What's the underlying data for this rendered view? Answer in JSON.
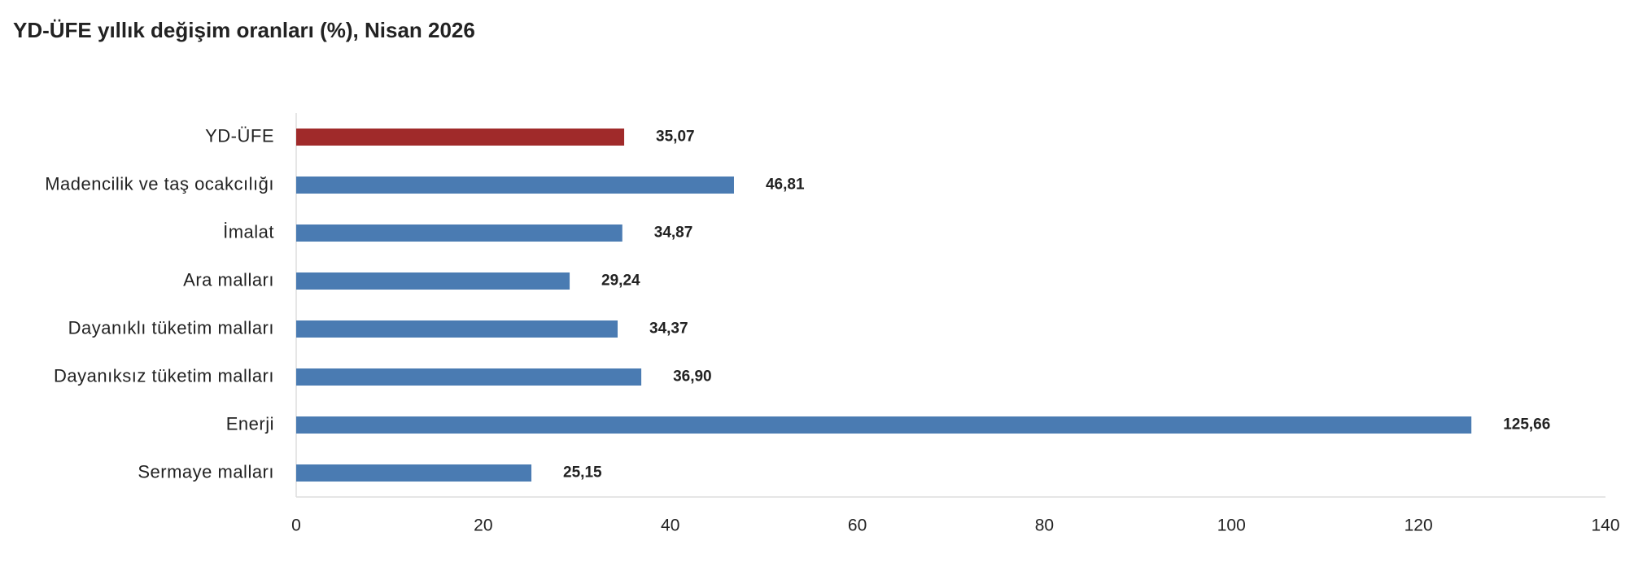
{
  "chart_data": {
    "type": "hbar",
    "title": "YD-ÜFE yıllık değişim oranları (%), Nisan 2026",
    "categories": [
      "YD-ÜFE",
      "Madencilik ve taş ocakcılığı",
      "İmalat",
      "Ara malları",
      "Dayanıklı tüketim malları",
      "Dayanıksız tüketim malları",
      "Enerji",
      "Sermaye malları"
    ],
    "values": [
      35.07,
      46.81,
      34.87,
      29.24,
      34.37,
      36.9,
      125.66,
      25.15
    ],
    "value_labels": [
      "35,07",
      "46,81",
      "34,87",
      "29,24",
      "34,37",
      "36,90",
      "125,66",
      "25,15"
    ],
    "colors": [
      "#a02a2a",
      "#4a7bb2",
      "#4a7bb2",
      "#4a7bb2",
      "#4a7bb2",
      "#4a7bb2",
      "#4a7bb2",
      "#4a7bb2"
    ],
    "xlim": [
      0,
      140
    ],
    "xticks": [
      0,
      20,
      40,
      60,
      80,
      100,
      120,
      140
    ],
    "grid": false
  }
}
